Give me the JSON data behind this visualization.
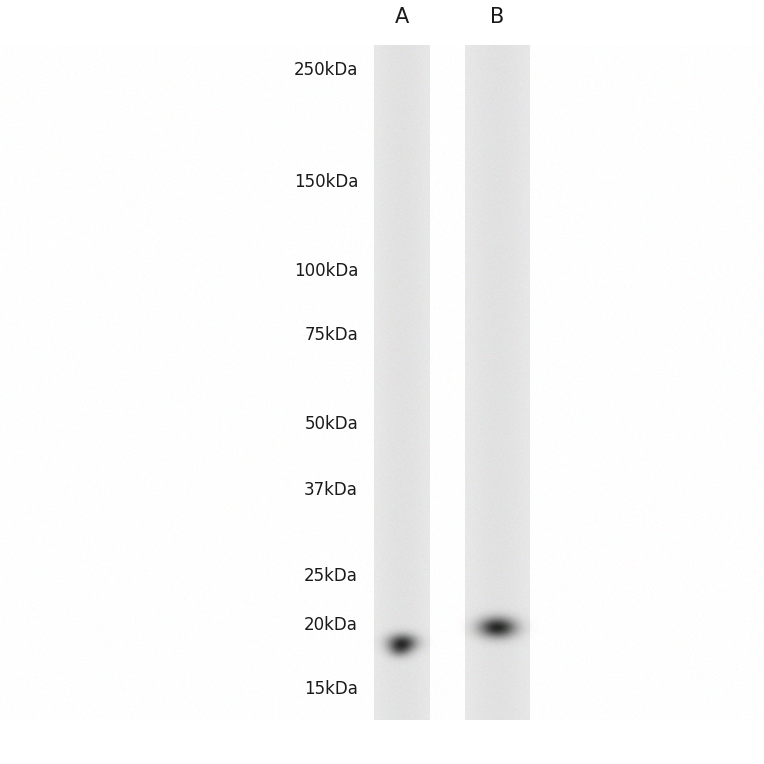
{
  "background_color": "#ffffff",
  "mw_markers": [
    "250kDa",
    "150kDa",
    "100kDa",
    "75kDa",
    "50kDa",
    "37kDa",
    "25kDa",
    "20kDa",
    "15kDa"
  ],
  "mw_values_kda": [
    250,
    150,
    100,
    75,
    50,
    37,
    25,
    20,
    15
  ],
  "lane_labels": [
    "A",
    "B"
  ],
  "figure_width": 7.64,
  "figure_height": 7.64,
  "dpi": 100,
  "lane_A_band_kda": 18.5,
  "lane_B_band_kda": 19.8,
  "gel_bg": 0.905,
  "lane_bg": 0.91,
  "label_fontsize": 12,
  "lane_label_fontsize": 15
}
